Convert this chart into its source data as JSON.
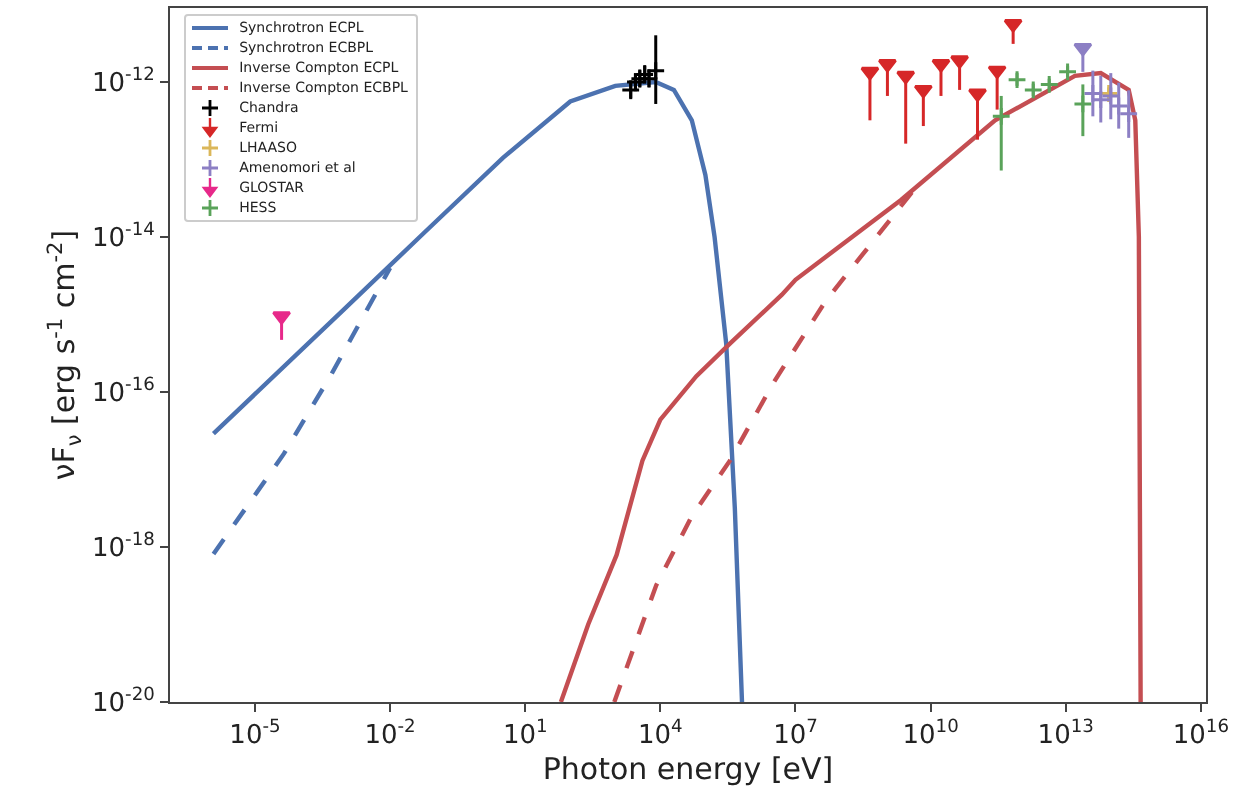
{
  "chart_data": {
    "type": "line",
    "xlabel": "Photon energy [eV]",
    "ylabel": "νF$_{ν}$ [erg s$^{-1}$ cm$^{-2}$]",
    "log": "xy",
    "grid": false,
    "legend": "top left",
    "xlim": [
      1.3e-07,
      1.3e+16
    ],
    "ylim": [
      1e-20,
      9e-12
    ],
    "xticks": [
      {
        "value": 1e-05,
        "label": "10$^{-5}$"
      },
      {
        "value": 0.01,
        "label": "10$^{-2}$"
      },
      {
        "value": 10,
        "label": "10$^{1}$"
      },
      {
        "value": 10000.0,
        "label": "10$^{4}$"
      },
      {
        "value": 10000000.0,
        "label": "10$^{7}$"
      },
      {
        "value": 10000000000.0,
        "label": "10$^{10}$"
      },
      {
        "value": 10000000000000.0,
        "label": "10$^{13}$"
      },
      {
        "value": 1e+16,
        "label": "10$^{16}$"
      }
    ],
    "yticks": [
      {
        "value": 1e-20,
        "label": "10$^{-20}$"
      },
      {
        "value": 1e-18,
        "label": "10$^{-18}$"
      },
      {
        "value": 1e-16,
        "label": "10$^{-16}$"
      },
      {
        "value": 1e-14,
        "label": "10$^{-14}$"
      },
      {
        "value": 1e-12,
        "label": "10$^{-12}$"
      }
    ],
    "series": [
      {
        "name": "Synchrotron ECPL",
        "line_style": "solid",
        "color": "#4c72b0",
        "x": [
          1.2e-06,
          0.001,
          0.054,
          3.2,
          100,
          1000,
          7900,
          20000.0,
          50000.0,
          100000.0,
          160000.0,
          290000.0,
          450000.0,
          650000.0
        ],
        "values": [
          2.9e-17,
          1.2e-15,
          1.1e-14,
          1.05e-13,
          5.6e-13,
          8.9e-13,
          1e-12,
          7.9e-13,
          3.2e-13,
          6.3e-14,
          1e-14,
          4.2e-16,
          3.2e-18,
          1e-20
        ]
      },
      {
        "name": "Synchrotron ECBPL",
        "line_style": "dashed",
        "color": "#4c72b0",
        "x": [
          1.2e-06,
          4.4e-05,
          0.0005,
          0.01
        ],
        "values": [
          8.1e-19,
          1.6e-17,
          1.7e-16,
          4e-15
        ]
      },
      {
        "name": "Inverse Compton ECPL",
        "line_style": "solid",
        "color": "#c44e52",
        "x": [
          62,
          250,
          1070,
          4000,
          10000.0,
          63000.0,
          350000.0,
          5000000.0,
          10000000.0,
          2200000000.0,
          270000000000.0,
          16000000000000.0,
          60000000000000.0,
          250000000000000.0,
          350000000000000.0,
          420000000000000.0,
          460000000000000.0
        ],
        "values": [
          1e-20,
          1e-19,
          7.9e-19,
          1.3e-17,
          4.4e-17,
          1.6e-16,
          4.2e-16,
          1.8e-15,
          2.8e-15,
          3e-14,
          3.2e-13,
          1.2e-12,
          1.3e-12,
          7.9e-13,
          3.2e-13,
          1e-14,
          1e-20
        ]
      },
      {
        "name": "Inverse Compton ECBPL",
        "line_style": "dashed",
        "color": "#c44e52",
        "x": [
          950,
          8100,
          50000.0,
          350000.0,
          3200000.0,
          47000000.0,
          4600000000.0
        ],
        "values": [
          1e-20,
          3.2e-19,
          2.5e-18,
          1.3e-17,
          1.3e-16,
          1.5e-15,
          4.3e-14
        ]
      },
      {
        "name": "Chandra",
        "type": "scatter",
        "marker": "cross",
        "color": "#000000",
        "x": [
          2200,
          2800,
          3500,
          4500,
          5600,
          7900
        ],
        "values": [
          7.9e-13,
          1e-12,
          1.1e-12,
          1.25e-12,
          1.1e-12,
          1.4e-12
        ],
        "errors": [
          [
            6e-13,
            1.05e-12
          ],
          [
            7.6e-13,
            1.3e-12
          ],
          [
            8.5e-13,
            1.45e-12
          ],
          [
            9.5e-13,
            1.65e-12
          ],
          [
            8.5e-13,
            1.45e-12
          ],
          [
            5.2e-13,
            4e-12
          ]
        ]
      },
      {
        "name": "Fermi",
        "type": "scatter",
        "marker": "triangle-down",
        "color": "#d62728",
        "x": [
          450000000.0,
          1100000000.0,
          2800000000.0,
          6900000000.0,
          17000000000.0,
          44000000000.0,
          110000000000.0,
          300000000000.0,
          680000000000.0
        ],
        "values": [
          1.35e-12,
          1.7e-12,
          1.2e-12,
          7.9e-13,
          1.7e-12,
          1.9e-12,
          7.1e-13,
          1.4e-12,
          5.6e-12
        ],
        "errors": [
          [
            3.2e-13,
            1.35e-12
          ],
          [
            6.6e-13,
            1.7e-12
          ],
          [
            1.6e-13,
            1.2e-12
          ],
          [
            2.7e-13,
            7.9e-13
          ],
          [
            6.6e-13,
            1.7e-12
          ],
          [
            7.9e-13,
            1.9e-12
          ],
          [
            1.8e-13,
            7.1e-13
          ],
          [
            4.4e-13,
            1.4e-12
          ],
          [
            3.1e-12,
            5.6e-12
          ]
        ]
      },
      {
        "name": "LHAASO",
        "type": "scatter",
        "marker": "cross",
        "color": "#dbb75a",
        "x": [
          90000000000000.0
        ],
        "values": [
          7.1e-13
        ],
        "errors": [
          [
            6e-13,
            8.5e-13
          ]
        ]
      },
      {
        "name": "Amenomori et al",
        "type": "scatter",
        "marker": "cross",
        "color": "#8c7fc4",
        "x": [
          40000000000000.0,
          60000000000000.0,
          100000000000000.0,
          150000000000000.0,
          250000000000000.0
        ],
        "values": [
          7.1e-13,
          5.9e-13,
          6.6e-13,
          4.9e-13,
          3.9e-13
        ],
        "errors": [
          [
            3.6e-13,
            1.4e-12
          ],
          [
            3e-13,
            1.2e-12
          ],
          [
            3.3e-13,
            1.3e-12
          ],
          [
            2.5e-13,
            9.8e-13
          ],
          [
            1.9e-13,
            7.8e-13
          ]
        ]
      },
      {
        "type": "scatter",
        "marker": "triangle-down",
        "color": "#8c7fc4",
        "x": [
          24000000000000.0
        ],
        "values": [
          2.75e-12
        ],
        "errors": [
          [
            1.35e-12,
            2.75e-12
          ]
        ]
      },
      {
        "name": "GLOSTAR",
        "type": "scatter",
        "marker": "triangle-down",
        "color": "#e7298a",
        "x": [
          3.9e-05
        ],
        "values": [
          9.5e-16
        ],
        "errors": [
          [
            4.7e-16,
            9.5e-16
          ]
        ]
      },
      {
        "name": "HESS",
        "type": "scatter",
        "marker": "cross",
        "color": "#5aa35a",
        "x": [
          370000000000.0,
          830000000000.0,
          1900000000000.0,
          4300000000000.0,
          11000000000000.0,
          24000000000000.0
        ],
        "values": [
          3.6e-13,
          1.07e-12,
          7.9e-13,
          9.3e-13,
          1.35e-12,
          5.2e-13
        ],
        "errors": [
          [
            7.2e-14,
            6.6e-13
          ],
          [
            8.9e-13,
            1.3e-12
          ],
          [
            6.6e-13,
            9.5e-13
          ],
          [
            7.8e-13,
            1.1e-12
          ],
          [
            1.15e-12,
            1.6e-12
          ],
          [
            2e-13,
            9.3e-13
          ]
        ]
      }
    ]
  }
}
